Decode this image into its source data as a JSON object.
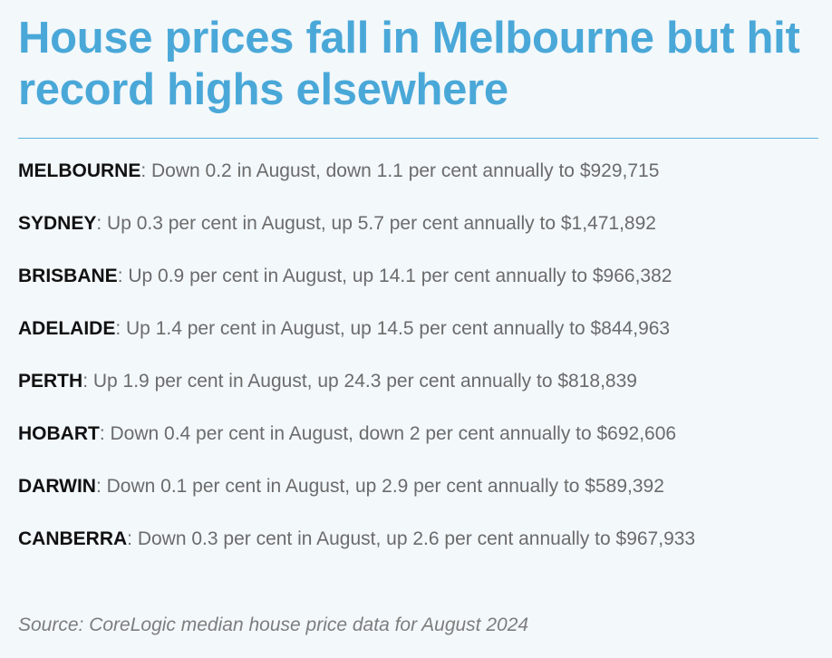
{
  "headline": "House prices fall in Melbourne but hit record highs elsewhere",
  "entries": [
    {
      "city": "MELBOURNE",
      "text": ": Down 0.2 in August, down 1.1 per cent annually to $929,715"
    },
    {
      "city": "SYDNEY",
      "text": ": Up 0.3 per cent in August, up 5.7 per cent annually to $1,471,892"
    },
    {
      "city": "BRISBANE",
      "text": ": Up 0.9 per cent in August, up 14.1 per cent annually to $966,382"
    },
    {
      "city": "ADELAIDE",
      "text": ": Up 1.4 per cent in August, up 14.5 per cent annually to $844,963"
    },
    {
      "city": "PERTH",
      "text": ": Up 1.9 per cent in August, up 24.3 per cent annually to $818,839"
    },
    {
      "city": "HOBART",
      "text": ": Down 0.4 per cent in August, down 2 per cent annually to $692,606"
    },
    {
      "city": "DARWIN",
      "text": ": Down 0.1 per cent in August, up 2.9 per cent annually to $589,392"
    },
    {
      "city": "CANBERRA",
      "text": ": Down 0.3 per cent in August, up 2.6 per cent annually to $967,933"
    }
  ],
  "source": "Source: CoreLogic median house price data for August 2024",
  "colors": {
    "headline": "#4aa8d8",
    "rule": "#5ab4dd",
    "background": "#f3f8fb",
    "city": "#111111",
    "body_text": "#6b6b6b"
  }
}
